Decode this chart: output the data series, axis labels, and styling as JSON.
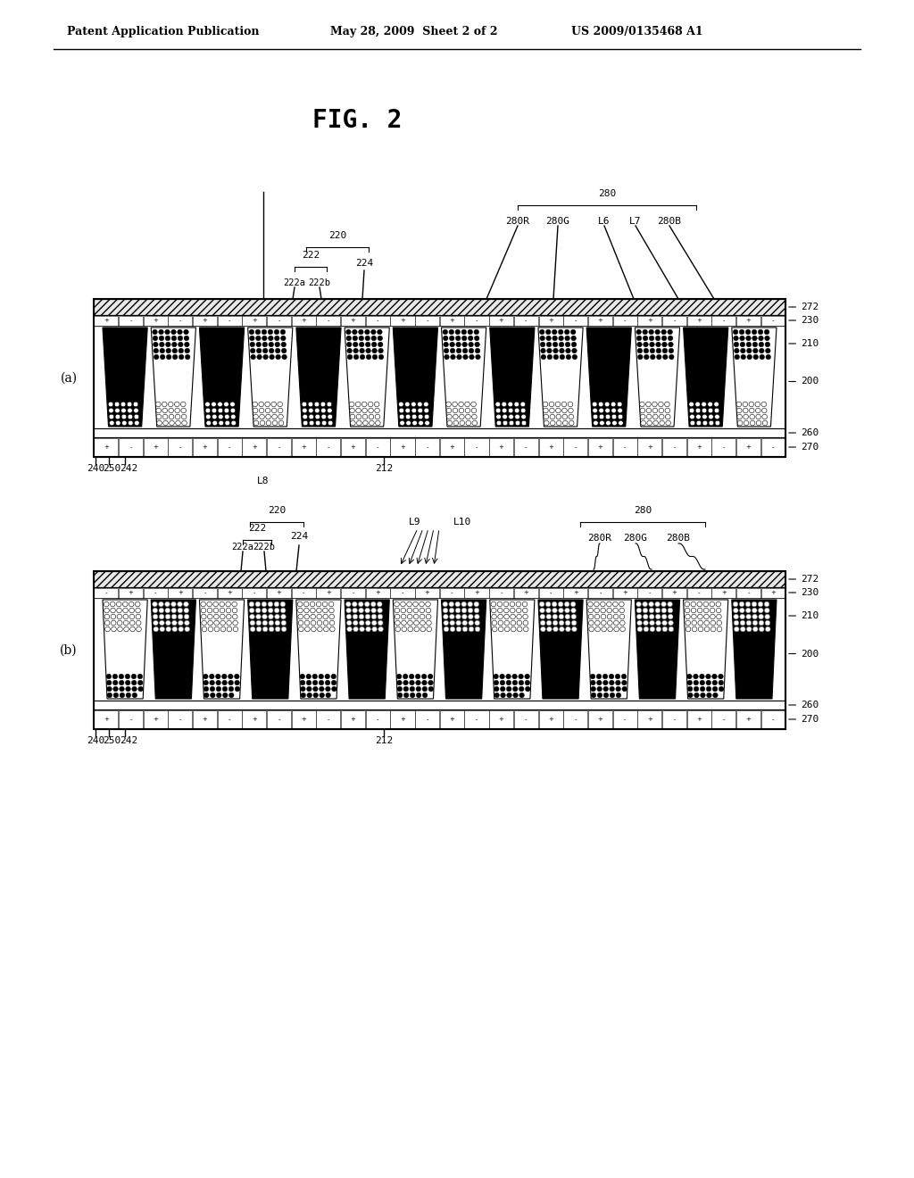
{
  "title_left": "Patent Application Publication",
  "title_mid": "May 28, 2009  Sheet 2 of 2",
  "title_right": "US 2009/0135468 A1",
  "fig_label": "FIG. 2",
  "background": "#ffffff"
}
